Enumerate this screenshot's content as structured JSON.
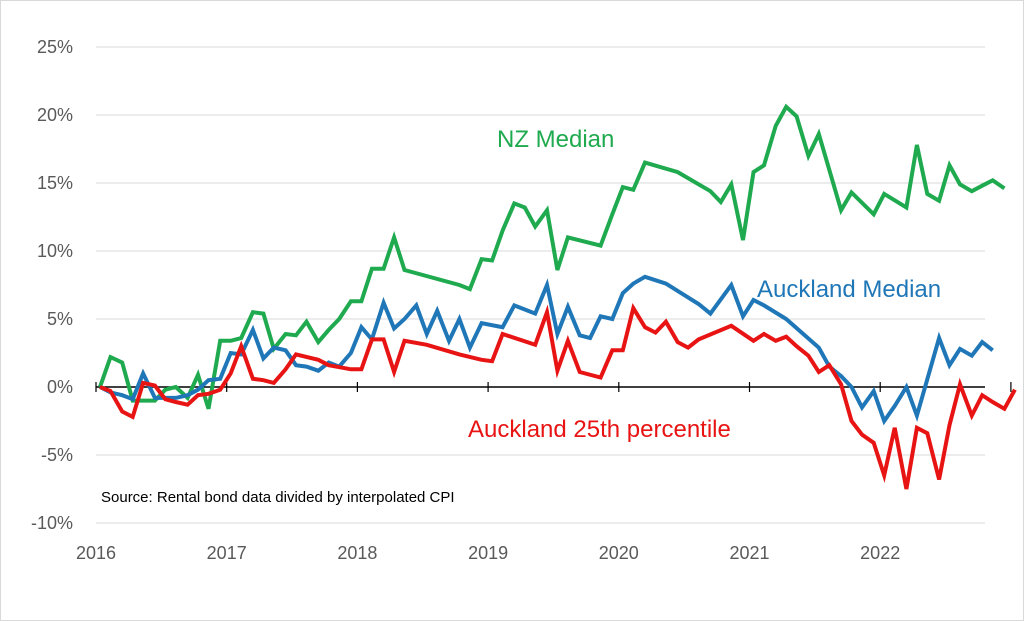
{
  "chart_data": {
    "type": "line",
    "source_note": "Source: Rental bond data divided by interpolated CPI",
    "x_ticks": [
      "2016",
      "2017",
      "2018",
      "2019",
      "2020",
      "2021",
      "2022"
    ],
    "y_ticks": [
      "25%",
      "20%",
      "15%",
      "10%",
      "5%",
      "0%",
      "-5%",
      "-10%"
    ],
    "xlim": [
      2016,
      2022.83
    ],
    "ylim": [
      -10,
      25
    ],
    "grid": true,
    "series": [
      {
        "name": "NZ Median",
        "color": "#1faa4f",
        "points": [
          [
            2016.0,
            0.0
          ],
          [
            2016.08,
            2.2
          ],
          [
            2016.17,
            1.8
          ],
          [
            2016.25,
            -1.0
          ],
          [
            2016.33,
            -1.0
          ],
          [
            2016.42,
            -1.0
          ],
          [
            2016.5,
            -0.2
          ],
          [
            2016.58,
            0.0
          ],
          [
            2016.67,
            -0.8
          ],
          [
            2016.75,
            0.9
          ],
          [
            2016.83,
            -1.6
          ],
          [
            2016.92,
            3.4
          ],
          [
            2017.0,
            3.4
          ],
          [
            2017.08,
            3.6
          ],
          [
            2017.17,
            5.5
          ],
          [
            2017.25,
            5.4
          ],
          [
            2017.33,
            2.8
          ],
          [
            2017.42,
            3.9
          ],
          [
            2017.5,
            3.8
          ],
          [
            2017.58,
            4.8
          ],
          [
            2017.67,
            3.3
          ],
          [
            2017.75,
            4.2
          ],
          [
            2017.83,
            5.0
          ],
          [
            2017.92,
            6.3
          ],
          [
            2018.0,
            6.3
          ],
          [
            2018.08,
            8.7
          ],
          [
            2018.17,
            8.7
          ],
          [
            2018.25,
            11.0
          ],
          [
            2018.33,
            8.6
          ],
          [
            2018.75,
            7.5
          ],
          [
            2018.83,
            7.2
          ],
          [
            2018.92,
            9.4
          ],
          [
            2019.0,
            9.3
          ],
          [
            2019.08,
            11.5
          ],
          [
            2019.17,
            13.5
          ],
          [
            2019.25,
            13.2
          ],
          [
            2019.33,
            11.8
          ],
          [
            2019.42,
            13.0
          ],
          [
            2019.5,
            8.6
          ],
          [
            2019.58,
            11.0
          ],
          [
            2019.83,
            10.4
          ],
          [
            2019.92,
            12.7
          ],
          [
            2020.0,
            14.7
          ],
          [
            2020.08,
            14.5
          ],
          [
            2020.17,
            16.5
          ],
          [
            2020.42,
            15.8
          ],
          [
            2020.67,
            14.4
          ],
          [
            2020.75,
            13.6
          ],
          [
            2020.83,
            14.9
          ],
          [
            2020.92,
            10.8
          ],
          [
            2021.0,
            15.8
          ],
          [
            2021.08,
            16.3
          ],
          [
            2021.17,
            19.2
          ],
          [
            2021.25,
            20.6
          ],
          [
            2021.33,
            19.9
          ],
          [
            2021.42,
            17.0
          ],
          [
            2021.5,
            18.6
          ],
          [
            2021.67,
            13.0
          ],
          [
            2021.75,
            14.3
          ],
          [
            2021.92,
            12.7
          ],
          [
            2022.0,
            14.2
          ],
          [
            2022.17,
            13.2
          ],
          [
            2022.25,
            17.8
          ],
          [
            2022.33,
            14.2
          ],
          [
            2022.42,
            13.7
          ],
          [
            2022.5,
            16.3
          ],
          [
            2022.58,
            14.9
          ],
          [
            2022.67,
            14.4
          ],
          [
            2022.75,
            14.8
          ],
          [
            2022.83,
            15.2
          ],
          [
            2022.92,
            14.6
          ]
        ]
      },
      {
        "name": "Auckland Median",
        "color": "#1f77b8",
        "points": [
          [
            2016.0,
            0.0
          ],
          [
            2016.08,
            -0.4
          ],
          [
            2016.17,
            -0.6
          ],
          [
            2016.25,
            -0.9
          ],
          [
            2016.33,
            1.0
          ],
          [
            2016.42,
            -0.8
          ],
          [
            2016.5,
            -0.8
          ],
          [
            2016.58,
            -0.8
          ],
          [
            2016.67,
            -0.6
          ],
          [
            2016.75,
            -0.2
          ],
          [
            2016.83,
            0.5
          ],
          [
            2016.92,
            0.6
          ],
          [
            2017.0,
            2.5
          ],
          [
            2017.08,
            2.4
          ],
          [
            2017.17,
            4.2
          ],
          [
            2017.25,
            2.1
          ],
          [
            2017.33,
            2.9
          ],
          [
            2017.42,
            2.7
          ],
          [
            2017.5,
            1.6
          ],
          [
            2017.58,
            1.5
          ],
          [
            2017.67,
            1.2
          ],
          [
            2017.75,
            1.8
          ],
          [
            2017.83,
            1.5
          ],
          [
            2017.92,
            2.5
          ],
          [
            2018.0,
            4.4
          ],
          [
            2018.08,
            3.5
          ],
          [
            2018.17,
            6.2
          ],
          [
            2018.25,
            4.3
          ],
          [
            2018.33,
            5.0
          ],
          [
            2018.42,
            6.0
          ],
          [
            2018.5,
            3.9
          ],
          [
            2018.58,
            5.6
          ],
          [
            2018.67,
            3.4
          ],
          [
            2018.75,
            5.0
          ],
          [
            2018.83,
            2.9
          ],
          [
            2018.92,
            4.7
          ],
          [
            2019.08,
            4.4
          ],
          [
            2019.17,
            6.0
          ],
          [
            2019.25,
            5.7
          ],
          [
            2019.33,
            5.4
          ],
          [
            2019.42,
            7.5
          ],
          [
            2019.5,
            3.9
          ],
          [
            2019.58,
            5.9
          ],
          [
            2019.67,
            3.8
          ],
          [
            2019.75,
            3.6
          ],
          [
            2019.83,
            5.2
          ],
          [
            2019.92,
            5.0
          ],
          [
            2020.0,
            6.9
          ],
          [
            2020.08,
            7.6
          ],
          [
            2020.17,
            8.1
          ],
          [
            2020.33,
            7.6
          ],
          [
            2020.58,
            6.1
          ],
          [
            2020.67,
            5.4
          ],
          [
            2020.83,
            7.5
          ],
          [
            2020.92,
            5.2
          ],
          [
            2021.0,
            6.4
          ],
          [
            2021.08,
            6.0
          ],
          [
            2021.25,
            5.0
          ],
          [
            2021.5,
            2.9
          ],
          [
            2021.58,
            1.5
          ],
          [
            2021.67,
            0.8
          ],
          [
            2021.75,
            0.0
          ],
          [
            2021.83,
            -1.5
          ],
          [
            2021.92,
            -0.3
          ],
          [
            2022.0,
            -2.5
          ],
          [
            2022.08,
            -1.4
          ],
          [
            2022.17,
            0.0
          ],
          [
            2022.25,
            -2.1
          ],
          [
            2022.42,
            3.6
          ],
          [
            2022.5,
            1.6
          ],
          [
            2022.58,
            2.8
          ],
          [
            2022.67,
            2.3
          ],
          [
            2022.75,
            3.3
          ],
          [
            2022.83,
            2.7
          ]
        ]
      },
      {
        "name": "Auckland 25th percentile",
        "color": "#e81414",
        "points": [
          [
            2016.0,
            0.0
          ],
          [
            2016.08,
            -0.3
          ],
          [
            2016.17,
            -1.8
          ],
          [
            2016.25,
            -2.2
          ],
          [
            2016.33,
            0.3
          ],
          [
            2016.42,
            0.1
          ],
          [
            2016.5,
            -0.9
          ],
          [
            2016.58,
            -1.1
          ],
          [
            2016.67,
            -1.3
          ],
          [
            2016.75,
            -0.6
          ],
          [
            2016.83,
            -0.5
          ],
          [
            2016.92,
            -0.2
          ],
          [
            2017.0,
            1.0
          ],
          [
            2017.08,
            3.0
          ],
          [
            2017.17,
            0.6
          ],
          [
            2017.25,
            0.5
          ],
          [
            2017.33,
            0.3
          ],
          [
            2017.42,
            1.3
          ],
          [
            2017.5,
            2.4
          ],
          [
            2017.67,
            2.0
          ],
          [
            2017.75,
            1.6
          ],
          [
            2017.92,
            1.3
          ],
          [
            2018.0,
            1.3
          ],
          [
            2018.08,
            3.5
          ],
          [
            2018.17,
            3.5
          ],
          [
            2018.25,
            1.1
          ],
          [
            2018.33,
            3.4
          ],
          [
            2018.5,
            3.1
          ],
          [
            2018.75,
            2.4
          ],
          [
            2018.92,
            2.0
          ],
          [
            2019.0,
            1.9
          ],
          [
            2019.08,
            3.9
          ],
          [
            2019.33,
            3.1
          ],
          [
            2019.42,
            5.5
          ],
          [
            2019.5,
            1.2
          ],
          [
            2019.58,
            3.4
          ],
          [
            2019.67,
            1.1
          ],
          [
            2019.83,
            0.7
          ],
          [
            2019.92,
            2.7
          ],
          [
            2020.0,
            2.7
          ],
          [
            2020.08,
            5.8
          ],
          [
            2020.17,
            4.4
          ],
          [
            2020.25,
            4.0
          ],
          [
            2020.33,
            4.8
          ],
          [
            2020.42,
            3.3
          ],
          [
            2020.5,
            2.9
          ],
          [
            2020.58,
            3.5
          ],
          [
            2020.83,
            4.5
          ],
          [
            2021.0,
            3.4
          ],
          [
            2021.08,
            3.9
          ],
          [
            2021.17,
            3.4
          ],
          [
            2021.25,
            3.7
          ],
          [
            2021.33,
            3.0
          ],
          [
            2021.42,
            2.3
          ],
          [
            2021.5,
            1.1
          ],
          [
            2021.58,
            1.6
          ],
          [
            2021.67,
            0.2
          ],
          [
            2021.75,
            -2.5
          ],
          [
            2021.83,
            -3.5
          ],
          [
            2021.92,
            -4.1
          ],
          [
            2022.0,
            -6.5
          ],
          [
            2022.08,
            -3.0
          ],
          [
            2022.17,
            -7.5
          ],
          [
            2022.25,
            -3.0
          ],
          [
            2022.33,
            -3.4
          ],
          [
            2022.42,
            -6.8
          ],
          [
            2022.5,
            -2.8
          ],
          [
            2022.58,
            0.2
          ],
          [
            2022.67,
            -2.1
          ],
          [
            2022.75,
            -0.6
          ],
          [
            2022.83,
            -1.1
          ],
          [
            2022.92,
            -1.6
          ],
          [
            2023.0,
            -0.2
          ]
        ]
      }
    ]
  }
}
